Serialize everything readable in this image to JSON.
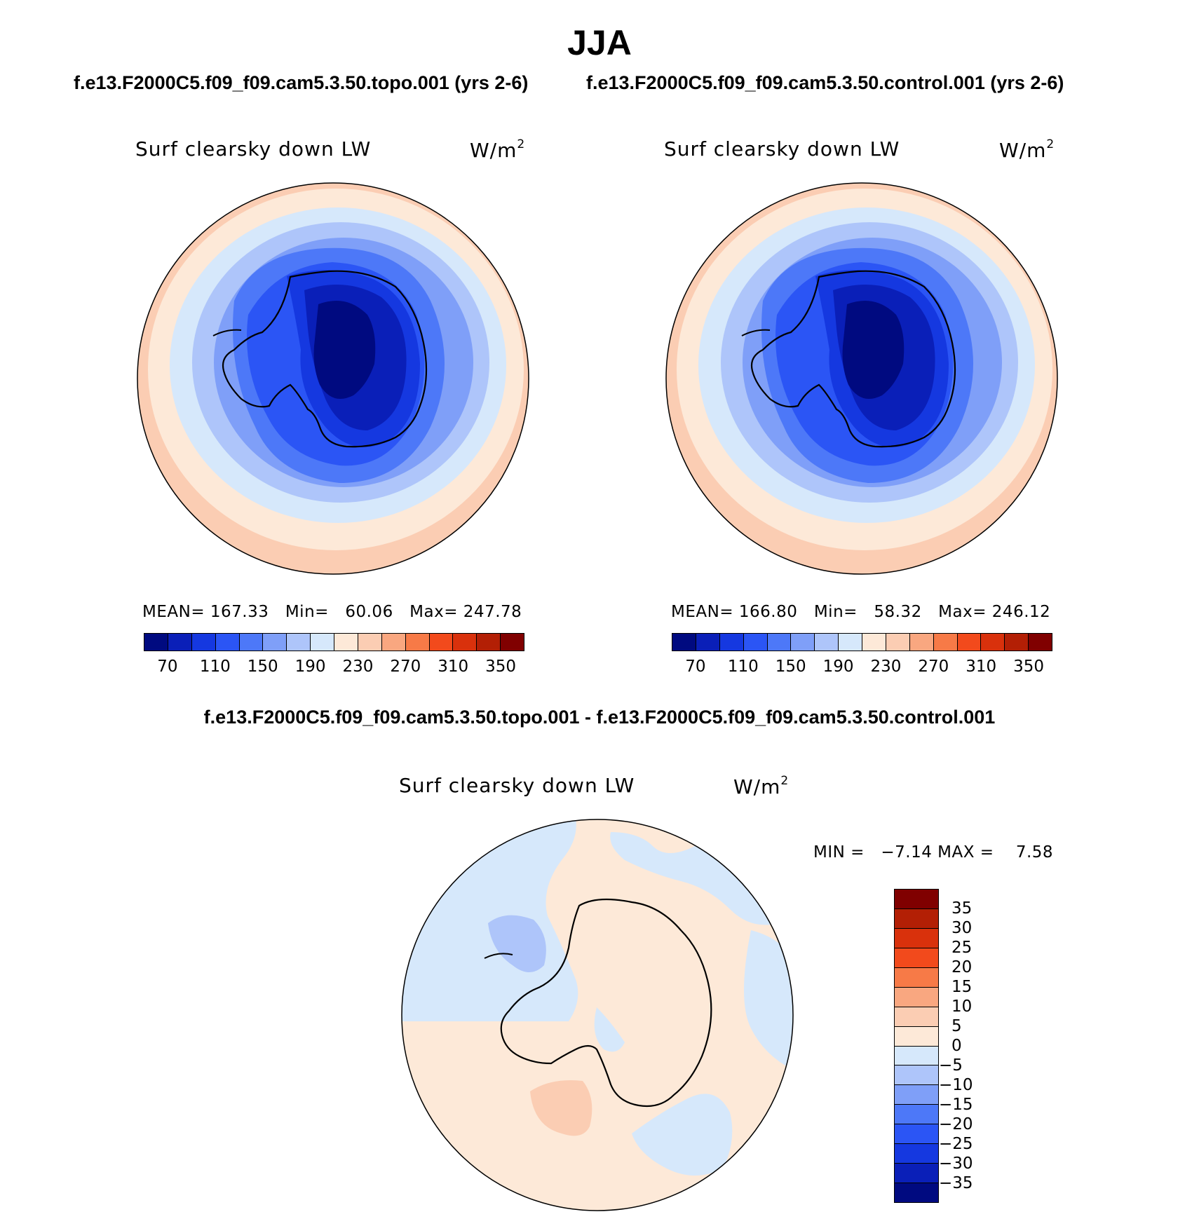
{
  "title": "JJA",
  "panels": {
    "left": {
      "case_title": "f.e13.F2000C5.f09_f09.cam5.3.50.topo.001 (yrs 2-6)",
      "variable": "Surf clearsky down LW",
      "units_base": "W/m",
      "units_exp": "2",
      "mean_label": "MEAN=",
      "mean": "167.33",
      "min_label": "Min=",
      "min": "60.06",
      "max_label": "Max=",
      "max": "247.78"
    },
    "right": {
      "case_title": "f.e13.F2000C5.f09_f09.cam5.3.50.control.001 (yrs 2-6)",
      "variable": "Surf clearsky down LW",
      "units_base": "W/m",
      "units_exp": "2",
      "mean_label": "MEAN=",
      "mean": "166.80",
      "min_label": "Min=",
      "min": "58.32",
      "max_label": "Max=",
      "max": "246.12"
    },
    "diff": {
      "case_title": "f.e13.F2000C5.f09_f09.cam5.3.50.topo.001 - f.e13.F2000C5.f09_f09.cam5.3.50.control.001",
      "variable": "Surf clearsky down LW",
      "units_base": "W/m",
      "units_exp": "2",
      "min_label": "MIN =",
      "min": "−7.14",
      "max_label": "MAX =",
      "max": "7.58"
    }
  },
  "colorbar_abs": {
    "ticks": [
      "70",
      "110",
      "150",
      "190",
      "230",
      "270",
      "310",
      "350"
    ],
    "colors": [
      "#000a80",
      "#0a1fb8",
      "#1538e0",
      "#2b55f5",
      "#4d78f8",
      "#7f9ff8",
      "#aec5fa",
      "#d6e8fb",
      "#fde9d8",
      "#fbcdb3",
      "#f9a780",
      "#f77a47",
      "#f24a1c",
      "#d9310c",
      "#b31f05",
      "#800000"
    ]
  },
  "colorbar_diff": {
    "ticks": [
      "35",
      "30",
      "25",
      "20",
      "15",
      "10",
      "5",
      "0",
      "−5",
      "−10",
      "−15",
      "−20",
      "−25",
      "−30",
      "−35"
    ],
    "colors": [
      "#800000",
      "#b31f05",
      "#d9310c",
      "#f24a1c",
      "#f77a47",
      "#f9a780",
      "#fbcdb3",
      "#fde9d8",
      "#d6e8fb",
      "#aec5fa",
      "#7f9ff8",
      "#4d78f8",
      "#2b55f5",
      "#1538e0",
      "#0a1fb8",
      "#000a80"
    ]
  },
  "fill_colors": {
    "c1": "#000a80",
    "c2": "#0a1fb8",
    "c3": "#1538e0",
    "c4": "#2b55f5",
    "c5": "#4d78f8",
    "c6": "#7f9ff8",
    "c7": "#aec5fa",
    "c8": "#d6e8fb",
    "c9": "#fde9d8",
    "c10": "#fbcdb3",
    "c11": "#f9a780"
  }
}
